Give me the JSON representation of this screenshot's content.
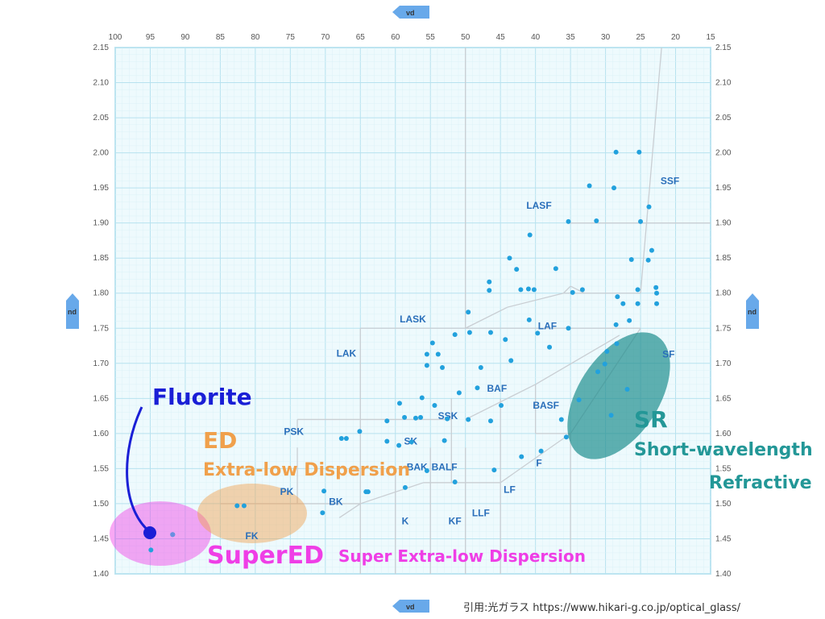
{
  "chart_data": {
    "type": "scatter",
    "xlabel": "vd",
    "ylabel": "nd",
    "xlim": [
      100,
      15
    ],
    "ylim": [
      1.4,
      2.15
    ],
    "x_ticks": [
      100,
      95,
      90,
      85,
      80,
      75,
      70,
      65,
      60,
      55,
      50,
      45,
      40,
      35,
      30,
      25,
      20,
      15
    ],
    "y_ticks": [
      "1.40",
      "1.45",
      "1.50",
      "1.55",
      "1.60",
      "1.65",
      "1.70",
      "1.75",
      "1.80",
      "1.85",
      "1.90",
      "1.95",
      "2.00",
      "2.05",
      "2.10",
      "2.15"
    ],
    "grid": true,
    "points": [
      [
        94.9,
        1.434
      ],
      [
        91.8,
        1.456
      ],
      [
        82.6,
        1.497
      ],
      [
        81.6,
        1.497
      ],
      [
        70.4,
        1.487
      ],
      [
        70.2,
        1.518
      ],
      [
        67.7,
        1.593
      ],
      [
        67,
        1.593
      ],
      [
        65.1,
        1.603
      ],
      [
        64.2,
        1.517
      ],
      [
        63.9,
        1.517
      ],
      [
        61.2,
        1.589
      ],
      [
        61.2,
        1.618
      ],
      [
        59.5,
        1.583
      ],
      [
        59.4,
        1.643
      ],
      [
        58.6,
        1.523
      ],
      [
        58.7,
        1.623
      ],
      [
        57.7,
        1.588
      ],
      [
        57.1,
        1.622
      ],
      [
        56.4,
        1.623
      ],
      [
        56.2,
        1.651
      ],
      [
        55.5,
        1.697
      ],
      [
        55.5,
        1.713
      ],
      [
        55.5,
        1.547
      ],
      [
        54.7,
        1.729
      ],
      [
        54.4,
        1.64
      ],
      [
        53.9,
        1.713
      ],
      [
        53.3,
        1.694
      ],
      [
        53,
        1.59
      ],
      [
        52.6,
        1.621
      ],
      [
        51.5,
        1.741
      ],
      [
        51.5,
        1.531
      ],
      [
        50.9,
        1.658
      ],
      [
        49.6,
        1.773
      ],
      [
        49.6,
        1.62
      ],
      [
        49.4,
        1.744
      ],
      [
        48.3,
        1.665
      ],
      [
        47.8,
        1.694
      ],
      [
        46.6,
        1.816
      ],
      [
        46.6,
        1.804
      ],
      [
        46.4,
        1.744
      ],
      [
        46.4,
        1.618
      ],
      [
        45.9,
        1.548
      ],
      [
        44.9,
        1.64
      ],
      [
        44.3,
        1.734
      ],
      [
        43.7,
        1.85
      ],
      [
        43.5,
        1.704
      ],
      [
        42.7,
        1.834
      ],
      [
        42.1,
        1.805
      ],
      [
        42,
        1.567
      ],
      [
        41,
        1.806
      ],
      [
        40.8,
        1.883
      ],
      [
        40.9,
        1.762
      ],
      [
        40.2,
        1.805
      ],
      [
        39.7,
        1.743
      ],
      [
        39.2,
        1.575
      ],
      [
        38,
        1.723
      ],
      [
        37.1,
        1.835
      ],
      [
        36.3,
        1.62
      ],
      [
        35.3,
        1.75
      ],
      [
        35.3,
        1.902
      ],
      [
        34.7,
        1.801
      ],
      [
        33.8,
        1.648
      ],
      [
        33.3,
        1.805
      ],
      [
        32.3,
        1.953
      ],
      [
        31.3,
        1.903
      ],
      [
        31.1,
        1.688
      ],
      [
        30.1,
        1.699
      ],
      [
        29.8,
        1.717
      ],
      [
        28.8,
        1.95
      ],
      [
        28.5,
        1.755
      ],
      [
        28.5,
        2.001
      ],
      [
        28.4,
        1.728
      ],
      [
        28.3,
        1.795
      ],
      [
        27.5,
        1.785
      ],
      [
        26.6,
        1.761
      ],
      [
        26.3,
        1.848
      ],
      [
        25.4,
        1.785
      ],
      [
        25.4,
        1.805
      ],
      [
        25.2,
        2.001
      ],
      [
        25,
        1.902
      ],
      [
        23.9,
        1.847
      ],
      [
        23.8,
        1.923
      ],
      [
        23.4,
        1.861
      ],
      [
        22.8,
        1.808
      ],
      [
        22.7,
        1.8
      ],
      [
        22.7,
        1.785
      ],
      [
        26.9,
        1.663
      ],
      [
        29.2,
        1.626
      ],
      [
        35.6,
        1.595
      ]
    ],
    "point_color": "#22a1dd",
    "region_labels": [
      {
        "text": "SSF",
        "x": 20.8,
        "y": 1.96
      },
      {
        "text": "LASF",
        "x": 39.5,
        "y": 1.925
      },
      {
        "text": "LASK",
        "x": 57.5,
        "y": 1.763
      },
      {
        "text": "LAF",
        "x": 38.3,
        "y": 1.753
      },
      {
        "text": "LAK",
        "x": 67,
        "y": 1.714
      },
      {
        "text": "SF",
        "x": 21,
        "y": 1.713
      },
      {
        "text": "BAF",
        "x": 45.5,
        "y": 1.664
      },
      {
        "text": "BASF",
        "x": 38.5,
        "y": 1.64
      },
      {
        "text": "SSK",
        "x": 52.5,
        "y": 1.625
      },
      {
        "text": "PSK",
        "x": 74.5,
        "y": 1.603
      },
      {
        "text": "SK",
        "x": 57.8,
        "y": 1.589
      },
      {
        "text": "BAK",
        "x": 56.9,
        "y": 1.552
      },
      {
        "text": "BALF",
        "x": 53,
        "y": 1.552
      },
      {
        "text": "F",
        "x": 39.5,
        "y": 1.558
      },
      {
        "text": "PK",
        "x": 75.5,
        "y": 1.517
      },
      {
        "text": "LF",
        "x": 43.7,
        "y": 1.52
      },
      {
        "text": "BK",
        "x": 68.5,
        "y": 1.503
      },
      {
        "text": "LLF",
        "x": 47.8,
        "y": 1.487
      },
      {
        "text": "K",
        "x": 58.6,
        "y": 1.475
      },
      {
        "text": "KF",
        "x": 51.5,
        "y": 1.475
      },
      {
        "text": "FK",
        "x": 80.5,
        "y": 1.454
      }
    ],
    "annotations": {
      "fluorite": {
        "text": "Fluorite",
        "color": "#1a1fd6"
      },
      "ed": {
        "text": "ED",
        "subtext": "Extra-low Dispersion",
        "color": "#f0a04b"
      },
      "supered": {
        "text": "SuperED",
        "subtext": "Super Extra-low Dispersion",
        "color": "#ef3ee6"
      },
      "sr": {
        "text": "SR",
        "subtext_line1": "Short-wavelength",
        "subtext_line2": "Refractive",
        "color": "#239797"
      }
    },
    "highlight_point": {
      "x": 95,
      "y": 1.455
    }
  },
  "citation": "引用:光ガラス  https://www.hikari-g.co.jp/optical_glass/"
}
